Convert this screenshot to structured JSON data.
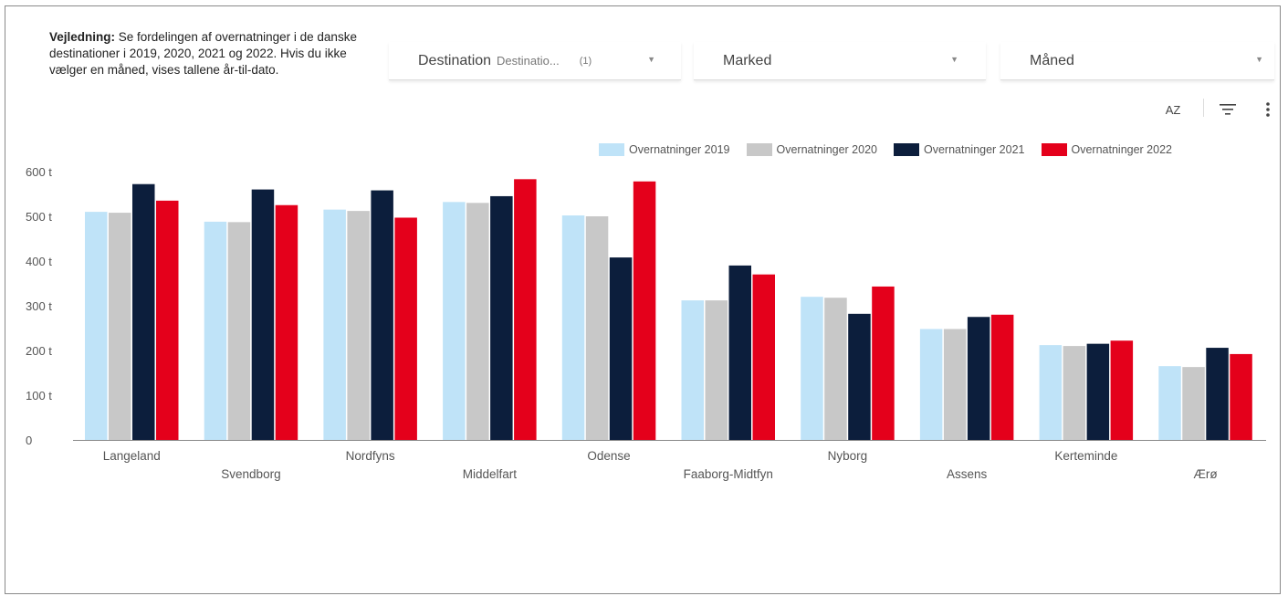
{
  "guide": {
    "bold": "Vejledning:",
    "text": " Se fordelingen af overnatninger i de danske destinationer i 2019,  2020, 2021 og 2022. Hvis du ikke vælger en måned, vises tallene år-til-dato."
  },
  "filters": {
    "destination": {
      "label": "Destination",
      "value": "Destinatio...",
      "count": "(1)"
    },
    "marked": {
      "label": "Marked"
    },
    "maaned": {
      "label": "Måned"
    }
  },
  "toolbar": {
    "sort_icon": "sort-az-icon",
    "filter_icon": "filter-icon",
    "more_icon": "more-vert-icon",
    "sort_label": "AZ"
  },
  "chart_data": {
    "type": "bar",
    "categories": [
      "Langeland",
      "Svendborg",
      "Nordfyns",
      "Middelfart",
      "Odense",
      "Faaborg-Midtfyn",
      "Nyborg",
      "Assens",
      "Kerteminde",
      "Ærø"
    ],
    "series": [
      {
        "name": "Overnatninger 2019",
        "color": "#bfe3f8",
        "values": [
          510,
          488,
          515,
          532,
          502,
          312,
          320,
          248,
          212,
          165
        ]
      },
      {
        "name": "Overnatninger 2020",
        "color": "#c8c8c8",
        "values": [
          508,
          487,
          512,
          530,
          500,
          312,
          318,
          248,
          210,
          163
        ]
      },
      {
        "name": "Overnatninger 2021",
        "color": "#0c1e3c",
        "values": [
          572,
          560,
          558,
          545,
          408,
          390,
          282,
          275,
          215,
          206
        ]
      },
      {
        "name": "Overnatninger 2022",
        "color": "#e4001b",
        "values": [
          535,
          525,
          497,
          583,
          578,
          370,
          343,
          280,
          222,
          192
        ]
      }
    ],
    "yticks": [
      "0",
      "100 t",
      "200 t",
      "300 t",
      "400 t",
      "500 t",
      "600 t"
    ],
    "ylim": [
      0,
      600
    ],
    "legend_position": "top-right",
    "grid": false
  }
}
